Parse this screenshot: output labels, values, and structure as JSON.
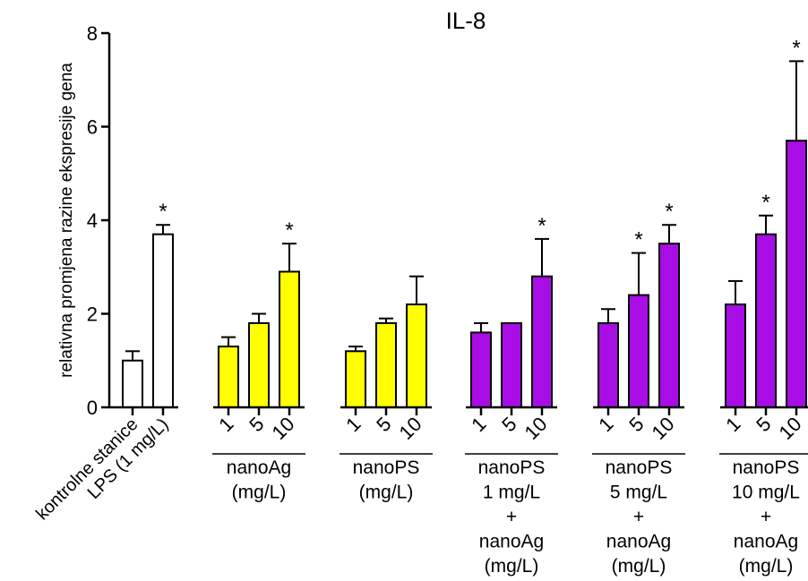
{
  "chart_data": {
    "type": "bar",
    "title": "IL-8",
    "ylabel": "relativna promjena razine ekspresije gena",
    "ylim": [
      0,
      8
    ],
    "yticks": [
      0,
      2,
      4,
      6,
      8
    ],
    "grid": false,
    "legend": "none",
    "colors": {
      "white": "#ffffff",
      "yellow": "#ffff00",
      "purple": "#a90de6",
      "outline": "#000000"
    },
    "bars": [
      {
        "group": 0,
        "label": "kontrolne stanice",
        "value": 1.0,
        "error": 0.2,
        "sig": "",
        "color": "white"
      },
      {
        "group": 0,
        "label": "LPS (1 mg/L)",
        "value": 3.7,
        "error": 0.2,
        "sig": "*",
        "color": "white"
      },
      {
        "group": 1,
        "label": "1",
        "value": 1.3,
        "error": 0.2,
        "sig": "",
        "color": "yellow"
      },
      {
        "group": 1,
        "label": "5",
        "value": 1.8,
        "error": 0.2,
        "sig": "",
        "color": "yellow"
      },
      {
        "group": 1,
        "label": "10",
        "value": 2.9,
        "error": 0.6,
        "sig": "*",
        "color": "yellow"
      },
      {
        "group": 2,
        "label": "1",
        "value": 1.2,
        "error": 0.1,
        "sig": "",
        "color": "yellow"
      },
      {
        "group": 2,
        "label": "5",
        "value": 1.8,
        "error": 0.1,
        "sig": "",
        "color": "yellow"
      },
      {
        "group": 2,
        "label": "10",
        "value": 2.2,
        "error": 0.6,
        "sig": "",
        "color": "yellow"
      },
      {
        "group": 3,
        "label": "1",
        "value": 1.6,
        "error": 0.2,
        "sig": "",
        "color": "purple"
      },
      {
        "group": 3,
        "label": "5",
        "value": 1.8,
        "error": 0.0,
        "sig": "",
        "color": "purple"
      },
      {
        "group": 3,
        "label": "10",
        "value": 2.8,
        "error": 0.8,
        "sig": "*",
        "color": "purple"
      },
      {
        "group": 4,
        "label": "1",
        "value": 1.8,
        "error": 0.3,
        "sig": "",
        "color": "purple"
      },
      {
        "group": 4,
        "label": "5",
        "value": 2.4,
        "error": 0.9,
        "sig": "*",
        "color": "purple"
      },
      {
        "group": 4,
        "label": "10",
        "value": 3.5,
        "error": 0.4,
        "sig": "*",
        "color": "purple"
      },
      {
        "group": 5,
        "label": "1",
        "value": 2.2,
        "error": 0.5,
        "sig": "",
        "color": "purple"
      },
      {
        "group": 5,
        "label": "5",
        "value": 3.7,
        "error": 0.4,
        "sig": "*",
        "color": "purple"
      },
      {
        "group": 5,
        "label": "10",
        "value": 5.7,
        "error": 1.7,
        "sig": "*",
        "color": "purple"
      }
    ],
    "group_labels": [
      {
        "group": 1,
        "lines": [
          "nanoAg",
          "(mg/L)"
        ]
      },
      {
        "group": 2,
        "lines": [
          "nanoPS",
          "(mg/L)"
        ]
      },
      {
        "group": 3,
        "lines": [
          "nanoPS",
          "1 mg/L",
          "+",
          "nanoAg",
          "(mg/L)"
        ]
      },
      {
        "group": 4,
        "lines": [
          "nanoPS",
          "5 mg/L",
          "+",
          "nanoAg",
          "(mg/L)"
        ]
      },
      {
        "group": 5,
        "lines": [
          "nanoPS",
          "10 mg/L",
          "+",
          "nanoAg",
          "(mg/L)"
        ]
      }
    ]
  }
}
